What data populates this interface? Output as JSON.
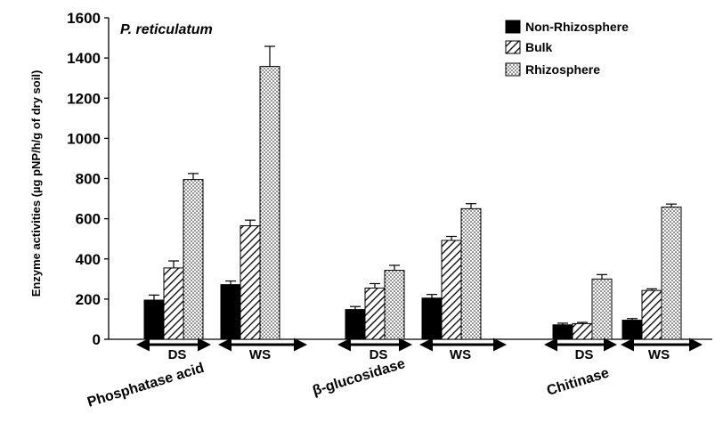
{
  "chart_data": {
    "type": "bar",
    "annotation": "P. reticulatum",
    "ylabel": "Enzyme activities (µg pNP/h/g of dry soil)",
    "ylim": [
      0,
      1600
    ],
    "yticks": [
      0,
      200,
      400,
      600,
      800,
      1000,
      1200,
      1400,
      1600
    ],
    "legend_position": "top-right",
    "legend": [
      "Non-Rhizosphere",
      "Bulk",
      "Rhizosphere"
    ],
    "enzyme_groups": [
      "Phosphatase acid",
      "β-glucosidase",
      "Chitinase"
    ],
    "season_labels": [
      "DS",
      "WS"
    ],
    "categories": [
      "Phosphatase acid DS",
      "Phosphatase acid WS",
      "β-glucosidase DS",
      "β-glucosidase WS",
      "Chitinase DS",
      "Chitinase WS"
    ],
    "series": [
      {
        "name": "Non-Rhizosphere",
        "fill": "solid",
        "values": [
          195,
          272,
          148,
          205,
          72,
          95
        ],
        "errors": [
          25,
          18,
          15,
          18,
          8,
          8
        ]
      },
      {
        "name": "Bulk",
        "fill": "hatch",
        "values": [
          355,
          565,
          255,
          492,
          78,
          243
        ],
        "errors": [
          35,
          28,
          22,
          20,
          6,
          8
        ]
      },
      {
        "name": "Rhizosphere",
        "fill": "dots",
        "values": [
          795,
          1358,
          343,
          650,
          300,
          658
        ],
        "errors": [
          30,
          100,
          25,
          25,
          22,
          15
        ]
      }
    ]
  },
  "colors": {
    "bar_solid": "#000000",
    "bar_pattern": "#ffffff",
    "axis": "#000000"
  }
}
